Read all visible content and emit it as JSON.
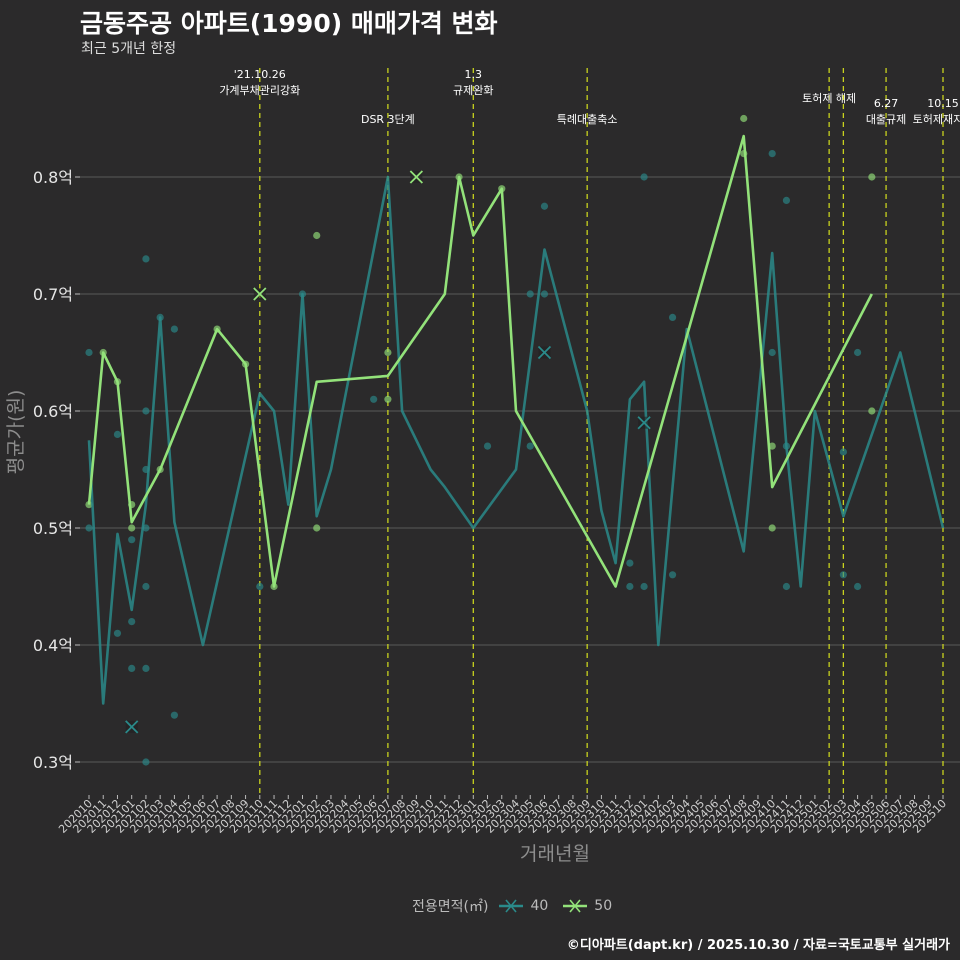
{
  "header": {
    "title": "금동주공 아파트(1990) 매매가격 변화",
    "subtitle": "최근 5개년 한정"
  },
  "footer": {
    "caption": "©디아파트(dapt.kr) / 2025.10.30 / 자료=국토교통부 실거래가"
  },
  "legend": {
    "title": "전용면적(㎡)",
    "items": [
      {
        "label": "40",
        "color": "#2a8a8a"
      },
      {
        "label": "50",
        "color": "#93e27a"
      }
    ]
  },
  "chart_data": {
    "type": "line",
    "title": "금동주공 아파트(1990) 매매가격 변화",
    "xlabel": "거래년월",
    "ylabel": "평균가(원)",
    "ylim": [
      0.27,
      0.9
    ],
    "yticks": [
      0.3,
      0.4,
      0.5,
      0.6,
      0.7,
      0.8
    ],
    "ytick_labels": [
      "0.3억",
      "0.4억",
      "0.5억",
      "0.6억",
      "0.7억",
      "0.8억"
    ],
    "categories": [
      "202010",
      "202011",
      "202012",
      "202101",
      "202102",
      "202103",
      "202104",
      "202105",
      "202106",
      "202107",
      "202108",
      "202109",
      "202110",
      "202111",
      "202112",
      "202201",
      "202202",
      "202203",
      "202204",
      "202205",
      "202206",
      "202207",
      "202208",
      "202209",
      "202210",
      "202211",
      "202212",
      "202301",
      "202302",
      "202303",
      "202304",
      "202305",
      "202306",
      "202307",
      "202308",
      "202309",
      "202310",
      "202311",
      "202312",
      "202401",
      "202402",
      "202403",
      "202404",
      "202405",
      "202406",
      "202407",
      "202408",
      "202409",
      "202410",
      "202411",
      "202412",
      "202501",
      "202502",
      "202503",
      "202504",
      "202505",
      "202506",
      "202507",
      "202508",
      "202509",
      "202510"
    ],
    "series": [
      {
        "name": "40",
        "color": "#2a8a8a",
        "line": [
          [
            "202010",
            0.575
          ],
          [
            "202011",
            0.35
          ],
          [
            "202012",
            0.495
          ],
          [
            "202101",
            0.43
          ],
          [
            "202102",
            0.52
          ],
          [
            "202103",
            0.68
          ],
          [
            "202104",
            0.505
          ],
          [
            "202106",
            0.4
          ],
          [
            "202110",
            0.615
          ],
          [
            "202111",
            0.6
          ],
          [
            "202112",
            0.52
          ],
          [
            "202201",
            0.7
          ],
          [
            "202202",
            0.51
          ],
          [
            "202203",
            0.55
          ],
          [
            "202207",
            0.8
          ],
          [
            "202208",
            0.6
          ],
          [
            "202210",
            0.55
          ],
          [
            "202211",
            0.535
          ],
          [
            "202301",
            0.5
          ],
          [
            "202304",
            0.55
          ],
          [
            "202306",
            0.738
          ],
          [
            "202309",
            0.6
          ],
          [
            "202310",
            0.515
          ],
          [
            "202311",
            0.47
          ],
          [
            "202312",
            0.61
          ],
          [
            "202401",
            0.625
          ],
          [
            "202402",
            0.4
          ],
          [
            "202404",
            0.67
          ],
          [
            "202408",
            0.48
          ],
          [
            "202410",
            0.735
          ],
          [
            "202411",
            0.57
          ],
          [
            "202412",
            0.45
          ],
          [
            "202501",
            0.6
          ],
          [
            "202503",
            0.51
          ],
          [
            "202507",
            0.65
          ],
          [
            "202510",
            0.5
          ]
        ],
        "points": [
          [
            "202010",
            0.65
          ],
          [
            "202010",
            0.5
          ],
          [
            "202012",
            0.41
          ],
          [
            "202012",
            0.58
          ],
          [
            "202101",
            0.49
          ],
          [
            "202101",
            0.38
          ],
          [
            "202101",
            0.42
          ],
          [
            "202102",
            0.73
          ],
          [
            "202102",
            0.6
          ],
          [
            "202102",
            0.55
          ],
          [
            "202102",
            0.5
          ],
          [
            "202102",
            0.45
          ],
          [
            "202102",
            0.38
          ],
          [
            "202102",
            0.3
          ],
          [
            "202103",
            0.68
          ],
          [
            "202104",
            0.67
          ],
          [
            "202104",
            0.34
          ],
          [
            "202110",
            0.45
          ],
          [
            "202201",
            0.7
          ],
          [
            "202206",
            0.61
          ],
          [
            "202302",
            0.57
          ],
          [
            "202305",
            0.7
          ],
          [
            "202305",
            0.57
          ],
          [
            "202306",
            0.775
          ],
          [
            "202306",
            0.7
          ],
          [
            "202312",
            0.47
          ],
          [
            "202312",
            0.45
          ],
          [
            "202401",
            0.8
          ],
          [
            "202401",
            0.45
          ],
          [
            "202403",
            0.68
          ],
          [
            "202403",
            0.46
          ],
          [
            "202410",
            0.82
          ],
          [
            "202410",
            0.65
          ],
          [
            "202411",
            0.78
          ],
          [
            "202411",
            0.57
          ],
          [
            "202411",
            0.45
          ],
          [
            "202503",
            0.565
          ],
          [
            "202503",
            0.46
          ],
          [
            "202504",
            0.65
          ],
          [
            "202504",
            0.45
          ]
        ],
        "cancelled": [
          [
            "202101",
            0.33
          ],
          [
            "202306",
            0.65
          ],
          [
            "202401",
            0.59
          ]
        ]
      },
      {
        "name": "50",
        "color": "#93e27a",
        "line": [
          [
            "202010",
            0.52
          ],
          [
            "202011",
            0.65
          ],
          [
            "202012",
            0.625
          ],
          [
            "202101",
            0.505
          ],
          [
            "202103",
            0.55
          ],
          [
            "202107",
            0.67
          ],
          [
            "202109",
            0.64
          ],
          [
            "202111",
            0.45
          ],
          [
            "202202",
            0.625
          ],
          [
            "202207",
            0.63
          ],
          [
            "202211",
            0.7
          ],
          [
            "202212",
            0.8
          ],
          [
            "202301",
            0.75
          ],
          [
            "202303",
            0.79
          ],
          [
            "202304",
            0.6
          ],
          [
            "202311",
            0.45
          ],
          [
            "202408",
            0.835
          ],
          [
            "202410",
            0.535
          ],
          [
            "202505",
            0.7
          ]
        ],
        "points": [
          [
            "202010",
            0.52
          ],
          [
            "202011",
            0.65
          ],
          [
            "202012",
            0.625
          ],
          [
            "202101",
            0.52
          ],
          [
            "202101",
            0.5
          ],
          [
            "202103",
            0.55
          ],
          [
            "202107",
            0.67
          ],
          [
            "202109",
            0.64
          ],
          [
            "202111",
            0.45
          ],
          [
            "202202",
            0.75
          ],
          [
            "202202",
            0.5
          ],
          [
            "202207",
            0.65
          ],
          [
            "202207",
            0.61
          ],
          [
            "202212",
            0.8
          ],
          [
            "202303",
            0.79
          ],
          [
            "202408",
            0.85
          ],
          [
            "202408",
            0.82
          ],
          [
            "202410",
            0.57
          ],
          [
            "202410",
            0.5
          ],
          [
            "202505",
            0.8
          ],
          [
            "202505",
            0.6
          ]
        ],
        "cancelled": [
          [
            "202110",
            0.7
          ],
          [
            "202209",
            0.8
          ]
        ]
      }
    ],
    "events": [
      {
        "at": "202110",
        "lines": [
          "'21.10.26",
          "가계부채관리강화"
        ],
        "row": 0
      },
      {
        "at": "202207",
        "lines": [
          "DSR 3단계"
        ],
        "row": 1
      },
      {
        "at": "202301",
        "lines": [
          "1.3",
          "규제완화"
        ],
        "row": 0
      },
      {
        "at": "202309",
        "lines": [
          "특례대출축소"
        ],
        "row": 1
      },
      {
        "at": "202502",
        "lines": [
          "토허제 해제"
        ],
        "row": 0
      },
      {
        "at": "202503",
        "lines": [],
        "row": 0
      },
      {
        "at": "202506",
        "lines": [
          "6.27",
          "대출규제"
        ],
        "row": 1
      },
      {
        "at": "202510",
        "lines": [
          "10.15",
          "토허제재지정"
        ],
        "row": 1
      }
    ]
  }
}
